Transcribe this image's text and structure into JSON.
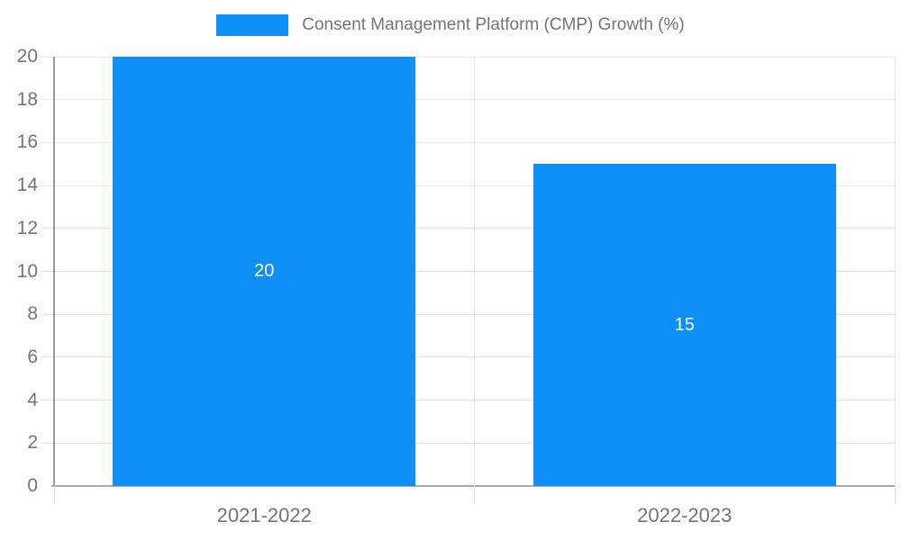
{
  "legend": {
    "label": "Consent Management Platform (CMP) Growth (%)"
  },
  "chart_data": {
    "type": "bar",
    "title": "Consent Management Platform (CMP) Growth (%)",
    "categories": [
      "2021-2022",
      "2022-2023"
    ],
    "values": [
      20,
      15
    ],
    "bar_value_labels": [
      "20",
      "15"
    ],
    "xlabel": "",
    "ylabel": "",
    "ylim": [
      0,
      20
    ],
    "yticks": [
      0,
      2,
      4,
      6,
      8,
      10,
      12,
      14,
      16,
      18,
      20
    ],
    "grid": true,
    "legend_position": "top-center",
    "colors": {
      "bar": "#0e90f8",
      "grid": "#e6e6e6",
      "axis_line": "#9b9b9b",
      "baseline": "#ababab",
      "tick": "#e0e0e0",
      "axis_text": "#757575",
      "bar_value_text": "#ffffff",
      "background": "#ffffff"
    }
  }
}
